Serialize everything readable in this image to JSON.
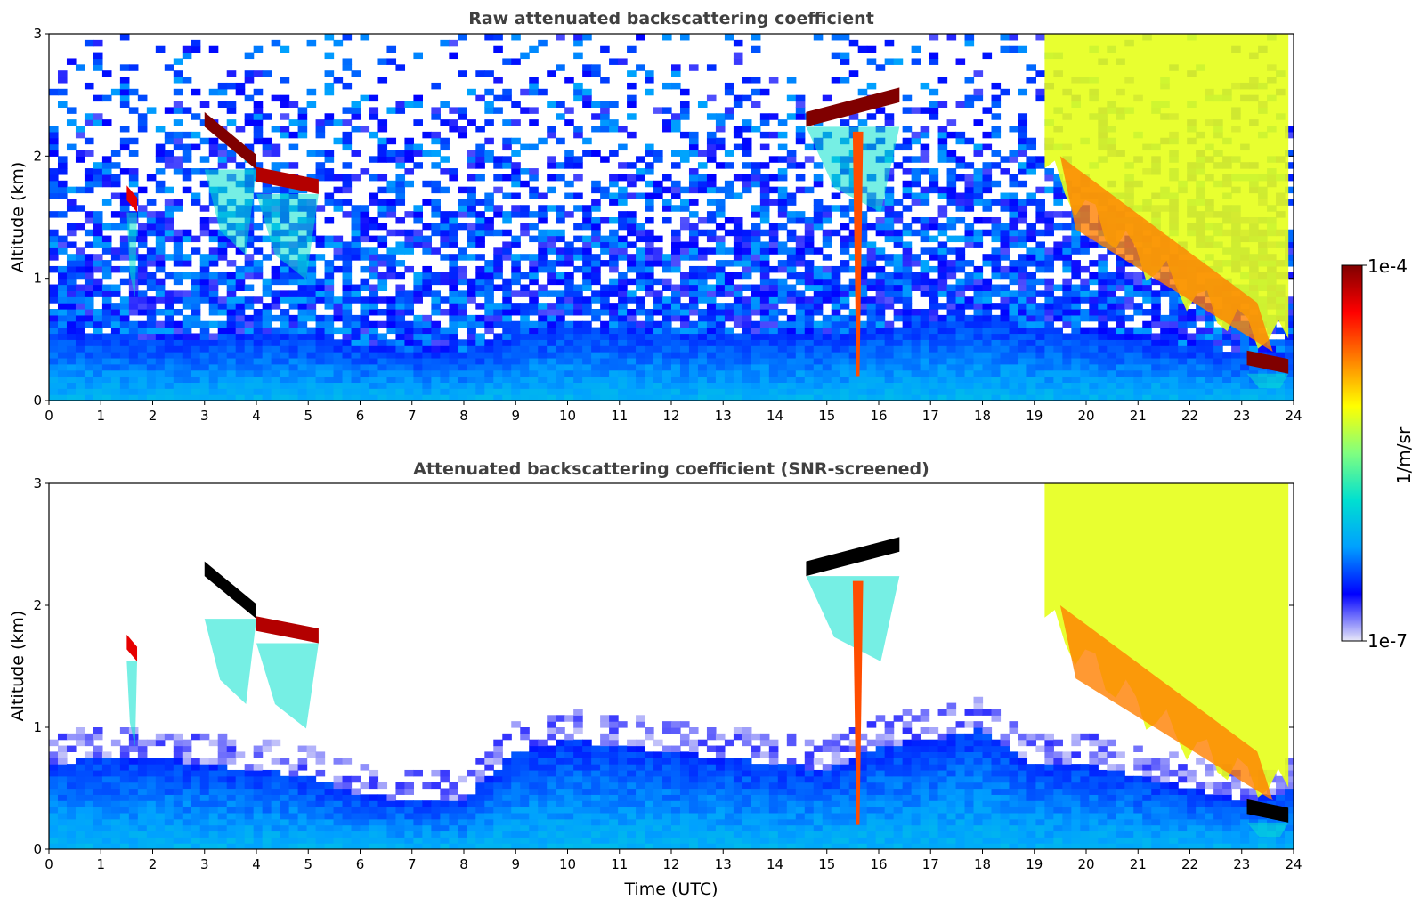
{
  "chart_data": [
    {
      "type": "heatmap",
      "title": "Raw attenuated backscattering coefficient",
      "xlabel": "",
      "ylabel": "Altitude (km)",
      "xlim": [
        0,
        24
      ],
      "ylim": [
        0,
        3
      ],
      "xticks": [
        0,
        1,
        2,
        3,
        4,
        5,
        6,
        7,
        8,
        9,
        10,
        11,
        12,
        13,
        14,
        15,
        16,
        17,
        18,
        19,
        20,
        21,
        22,
        23,
        24
      ],
      "yticks": [
        0,
        1,
        2,
        3
      ],
      "screened": false,
      "features": [
        {
          "kind": "boundary_layer",
          "t_start": 0,
          "t_end": 24,
          "top_km_hourly": [
            0.55,
            0.55,
            0.5,
            0.5,
            0.55,
            0.55,
            0.45,
            0.4,
            0.4,
            0.55,
            0.6,
            0.6,
            0.55,
            0.55,
            0.55,
            0.55,
            0.6,
            0.65,
            0.7,
            0.6,
            0.55,
            0.5,
            0.45,
            0.4,
            0.4
          ],
          "level": 0.2
        },
        {
          "kind": "cloud",
          "t_start": 3.0,
          "t_end": 4.0,
          "alt_start_km": 2.3,
          "alt_end_km": 1.95,
          "level": 1.0
        },
        {
          "kind": "cloud",
          "t_start": 4.0,
          "t_end": 5.2,
          "alt_start_km": 1.85,
          "alt_end_km": 1.75,
          "level": 0.95
        },
        {
          "kind": "cloud",
          "t_start": 1.5,
          "t_end": 1.7,
          "alt_start_km": 1.7,
          "alt_end_km": 1.6,
          "level": 0.9
        },
        {
          "kind": "cloud",
          "t_start": 14.6,
          "t_end": 16.4,
          "alt_start_km": 2.3,
          "alt_end_km": 2.5,
          "level": 1.0
        },
        {
          "kind": "precipitation",
          "t_start": 15.5,
          "t_end": 15.7,
          "alt_start_km": 2.2,
          "alt_end_km": 0.2,
          "level": 0.8
        },
        {
          "kind": "thick_cloud",
          "t_start": 19.2,
          "t_end": 23.9,
          "alt_start_km": 3.0,
          "alt_end_km": 0.5,
          "level": 0.6
        },
        {
          "kind": "cloud",
          "t_start": 23.1,
          "t_end": 23.9,
          "alt_start_km": 0.35,
          "alt_end_km": 0.28,
          "level": 1.0
        }
      ]
    },
    {
      "type": "heatmap",
      "title": "Attenuated backscattering coefficient (SNR-screened)",
      "xlabel": "Time (UTC)",
      "ylabel": "Altitude (km)",
      "xlim": [
        0,
        24
      ],
      "ylim": [
        0,
        3
      ],
      "xticks": [
        0,
        1,
        2,
        3,
        4,
        5,
        6,
        7,
        8,
        9,
        10,
        11,
        12,
        13,
        14,
        15,
        16,
        17,
        18,
        19,
        20,
        21,
        22,
        23,
        24
      ],
      "yticks": [
        0,
        1,
        2,
        3
      ],
      "screened": true,
      "features": [
        {
          "kind": "boundary_layer",
          "t_start": 0,
          "t_end": 24,
          "top_km_hourly": [
            0.7,
            0.75,
            0.75,
            0.7,
            0.65,
            0.6,
            0.45,
            0.4,
            0.4,
            0.8,
            0.9,
            0.85,
            0.8,
            0.75,
            0.7,
            0.65,
            0.85,
            0.9,
            1.0,
            0.7,
            0.7,
            0.6,
            0.5,
            0.4,
            0.5
          ],
          "level": 0.2
        },
        {
          "kind": "cloud",
          "t_start": 3.0,
          "t_end": 4.0,
          "alt_start_km": 2.3,
          "alt_end_km": 1.95,
          "level": 1.0
        },
        {
          "kind": "cloud",
          "t_start": 4.0,
          "t_end": 5.2,
          "alt_start_km": 1.85,
          "alt_end_km": 1.75,
          "level": 0.95
        },
        {
          "kind": "cloud",
          "t_start": 1.5,
          "t_end": 1.7,
          "alt_start_km": 1.7,
          "alt_end_km": 1.6,
          "level": 0.9
        },
        {
          "kind": "cloud",
          "t_start": 14.6,
          "t_end": 16.4,
          "alt_start_km": 2.3,
          "alt_end_km": 2.5,
          "level": 1.0
        },
        {
          "kind": "precipitation",
          "t_start": 15.5,
          "t_end": 15.7,
          "alt_start_km": 2.2,
          "alt_end_km": 0.2,
          "level": 0.8
        },
        {
          "kind": "thick_cloud",
          "t_start": 19.2,
          "t_end": 23.9,
          "alt_start_km": 3.0,
          "alt_end_km": 0.5,
          "level": 0.6
        },
        {
          "kind": "cloud",
          "t_start": 23.1,
          "t_end": 23.9,
          "alt_start_km": 0.35,
          "alt_end_km": 0.28,
          "level": 1.0
        }
      ]
    }
  ],
  "colorbar": {
    "label": "1/m/sr",
    "max_label": "1e-4",
    "min_label": "1e-7",
    "scale": "log",
    "range": [
      1e-07,
      0.0001
    ],
    "colormap": "jet",
    "colors": [
      "#e8e8f8",
      "#0000ff",
      "#00a0ff",
      "#00e0d0",
      "#80ff80",
      "#ffff00",
      "#ff8000",
      "#ff0000",
      "#800000"
    ]
  }
}
